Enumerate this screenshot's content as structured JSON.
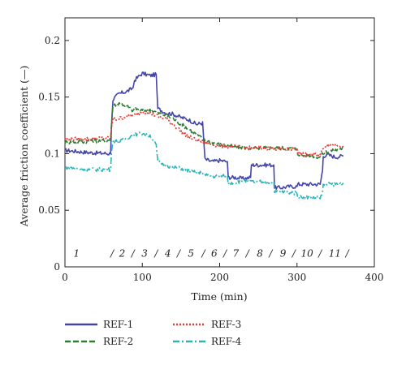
{
  "chart_data": {
    "type": "line",
    "xlabel": "Time (min)",
    "ylabel": "Average friction coefficient (—)",
    "xlim": [
      0,
      400
    ],
    "ylim": [
      0,
      0.22
    ],
    "x_ticks": [
      0,
      100,
      200,
      300,
      400
    ],
    "x_tick_labels": [
      "0",
      "100",
      "200",
      "300",
      "400"
    ],
    "y_ticks": [
      0,
      0.05,
      0.1,
      0.15,
      0.2
    ],
    "y_tick_labels": [
      "0",
      "0.05",
      "0.1",
      "0.15",
      "0.2"
    ],
    "grid": false,
    "legend_position": "bottom",
    "segment_labels": [
      {
        "x": 15,
        "text": "1"
      },
      {
        "x": 61,
        "text": "/"
      },
      {
        "x": 74,
        "text": "2"
      },
      {
        "x": 88,
        "text": "/"
      },
      {
        "x": 103,
        "text": "3"
      },
      {
        "x": 118,
        "text": "/"
      },
      {
        "x": 133,
        "text": "4"
      },
      {
        "x": 147,
        "text": "/"
      },
      {
        "x": 163,
        "text": "5"
      },
      {
        "x": 179,
        "text": "/"
      },
      {
        "x": 193,
        "text": "6"
      },
      {
        "x": 207,
        "text": "/"
      },
      {
        "x": 221,
        "text": "7"
      },
      {
        "x": 236,
        "text": "/"
      },
      {
        "x": 252,
        "text": "8"
      },
      {
        "x": 266,
        "text": "/"
      },
      {
        "x": 282,
        "text": "9"
      },
      {
        "x": 296,
        "text": "/"
      },
      {
        "x": 313,
        "text": "10"
      },
      {
        "x": 330,
        "text": "/"
      },
      {
        "x": 349,
        "text": "11"
      },
      {
        "x": 365,
        "text": "/"
      }
    ],
    "segment_label_y": 0.009,
    "series": [
      {
        "name": "REF-1",
        "color": "#4444aa",
        "dash": "solid",
        "x": [
          0,
          30,
          59,
          60,
          62,
          70,
          80,
          88,
          90,
          100,
          110,
          118,
          120,
          130,
          140,
          150,
          160,
          170,
          178,
          181,
          190,
          200,
          210,
          211,
          220,
          230,
          240,
          241,
          250,
          260,
          270,
          271,
          280,
          290,
          300,
          301,
          310,
          320,
          330,
          333,
          334,
          340,
          350,
          360
        ],
        "y": [
          0.103,
          0.101,
          0.1,
          0.122,
          0.148,
          0.153,
          0.155,
          0.158,
          0.165,
          0.171,
          0.169,
          0.17,
          0.14,
          0.136,
          0.135,
          0.132,
          0.13,
          0.126,
          0.127,
          0.095,
          0.093,
          0.094,
          0.093,
          0.079,
          0.079,
          0.078,
          0.079,
          0.09,
          0.09,
          0.09,
          0.09,
          0.07,
          0.07,
          0.071,
          0.071,
          0.073,
          0.073,
          0.073,
          0.073,
          0.085,
          0.098,
          0.099,
          0.097,
          0.098
        ]
      },
      {
        "name": "REF-2",
        "color": "#2e7d32",
        "dash": "7,3",
        "x": [
          0,
          30,
          59,
          60,
          62,
          70,
          80,
          88,
          90,
          100,
          110,
          120,
          130,
          140,
          150,
          160,
          170,
          180,
          190,
          200,
          220,
          240,
          260,
          280,
          300,
          301,
          310,
          320,
          330,
          335,
          340,
          350,
          360
        ],
        "y": [
          0.11,
          0.111,
          0.112,
          0.125,
          0.142,
          0.145,
          0.142,
          0.138,
          0.14,
          0.138,
          0.139,
          0.136,
          0.134,
          0.131,
          0.126,
          0.122,
          0.117,
          0.112,
          0.11,
          0.108,
          0.106,
          0.105,
          0.105,
          0.105,
          0.104,
          0.1,
          0.098,
          0.098,
          0.097,
          0.101,
          0.102,
          0.103,
          0.105
        ]
      },
      {
        "name": "REF-3",
        "color": "#e53935",
        "dash": "2,2",
        "x": [
          0,
          30,
          59,
          60,
          62,
          70,
          80,
          90,
          100,
          110,
          120,
          130,
          140,
          150,
          160,
          170,
          180,
          190,
          200,
          220,
          240,
          260,
          280,
          300,
          301,
          310,
          320,
          330,
          335,
          340,
          350,
          360
        ],
        "y": [
          0.113,
          0.113,
          0.114,
          0.122,
          0.13,
          0.131,
          0.133,
          0.134,
          0.137,
          0.136,
          0.133,
          0.131,
          0.126,
          0.12,
          0.115,
          0.112,
          0.11,
          0.108,
          0.107,
          0.106,
          0.105,
          0.105,
          0.104,
          0.104,
          0.101,
          0.099,
          0.099,
          0.099,
          0.106,
          0.108,
          0.108,
          0.107
        ]
      },
      {
        "name": "REF-4",
        "color": "#2bb5b8",
        "dash": "8,3,2,3",
        "x": [
          0,
          30,
          59,
          60,
          62,
          70,
          80,
          90,
          100,
          110,
          118,
          120,
          130,
          140,
          150,
          160,
          170,
          180,
          181,
          190,
          200,
          210,
          211,
          220,
          230,
          240,
          241,
          250,
          260,
          270,
          271,
          280,
          290,
          300,
          301,
          310,
          320,
          330,
          333,
          334,
          340,
          350,
          360
        ],
        "y": [
          0.088,
          0.086,
          0.086,
          0.1,
          0.112,
          0.11,
          0.114,
          0.117,
          0.118,
          0.116,
          0.108,
          0.093,
          0.09,
          0.088,
          0.087,
          0.085,
          0.083,
          0.083,
          0.081,
          0.08,
          0.08,
          0.08,
          0.074,
          0.075,
          0.076,
          0.076,
          0.075,
          0.075,
          0.075,
          0.075,
          0.066,
          0.066,
          0.066,
          0.065,
          0.062,
          0.062,
          0.061,
          0.061,
          0.066,
          0.072,
          0.073,
          0.073,
          0.074
        ]
      }
    ]
  }
}
